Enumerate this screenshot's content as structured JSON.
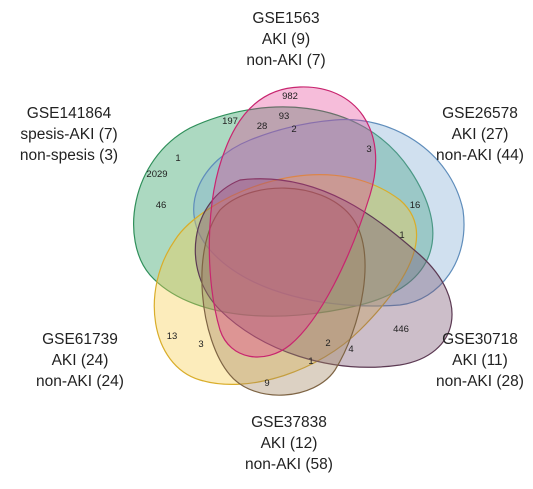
{
  "sets": [
    {
      "id": "gse1563",
      "name": "GSE1563",
      "line2": "AKI (9)",
      "line3": "non-AKI (7)",
      "color": "#e3338d"
    },
    {
      "id": "gse26578",
      "name": "GSE26578",
      "line2": "AKI (27)",
      "line3": "non-AKI (44)",
      "color": "#7ea8d2"
    },
    {
      "id": "gse30718",
      "name": "GSE30718",
      "line2": "AKI (11)",
      "line3": "non-AKI (28)",
      "color": "#7a5370"
    },
    {
      "id": "gse37838",
      "name": "GSE37838",
      "line2": "AKI (12)",
      "line3": "non-AKI (58)",
      "color": "#a38660"
    },
    {
      "id": "gse61739",
      "name": "GSE61739",
      "line2": "AKI (24)",
      "line3": "non-AKI (24)",
      "color": "#f6cd4c"
    },
    {
      "id": "gse141864",
      "name": "GSE141864",
      "line2": "spesis-AKI (7)",
      "line3": "non-spesis (3)",
      "color": "#3aa56b"
    }
  ],
  "counts": [
    "982",
    "197",
    "28",
    "93",
    "2",
    "3",
    "1",
    "2029",
    "46",
    "16",
    "1",
    "446",
    "13",
    "3",
    "2",
    "4",
    "1",
    "9"
  ]
}
